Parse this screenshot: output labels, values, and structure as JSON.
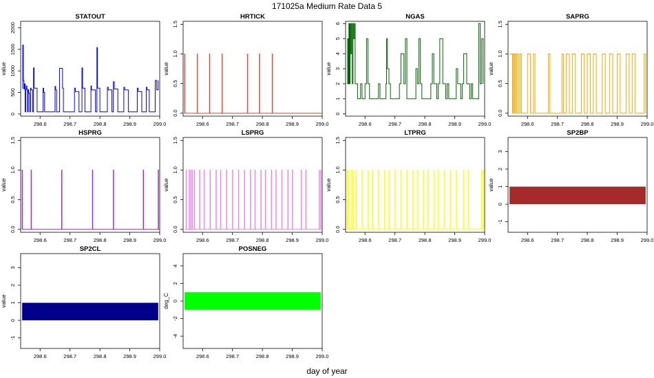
{
  "figure": {
    "title": "171025a   Medium Rate Data 5",
    "xlabel": "day of year"
  },
  "chart_data": [
    {
      "type": "line",
      "title": "STATOUT",
      "ylabel": "value",
      "color": "#0000ff",
      "xlim": [
        298.535,
        299.0
      ],
      "ylim": [
        -50,
        2150
      ],
      "xticks": [
        298.6,
        298.7,
        298.8,
        298.9,
        299.0
      ],
      "xtick_labels": [
        "298.6",
        "298.7",
        "298.8",
        "298.9",
        "299.0"
      ],
      "yticks": [
        0,
        500,
        1000,
        1500,
        2000
      ],
      "ytick_labels": [
        "0",
        "500",
        "1000",
        "1500",
        "2000"
      ],
      "x": [
        298.54,
        298.542,
        298.544,
        298.546,
        298.548,
        298.55,
        298.552,
        298.554,
        298.556,
        298.558,
        298.56,
        298.562,
        298.565,
        298.568,
        298.57,
        298.575,
        298.578,
        298.58,
        298.59,
        298.61,
        298.612,
        298.615,
        298.625,
        298.65,
        298.652,
        298.655,
        298.665,
        298.675,
        298.678,
        298.69,
        298.715,
        298.718,
        298.73,
        298.74,
        298.742,
        298.75,
        298.77,
        298.772,
        298.785,
        298.79,
        298.792,
        298.8,
        298.825,
        298.828,
        298.84,
        298.845,
        298.848,
        298.86,
        298.88,
        298.883,
        298.895,
        298.925,
        298.928,
        298.94,
        298.955,
        298.958,
        298.965,
        298.98,
        298.985,
        298.99,
        298.995
      ],
      "y": [
        600,
        1600,
        780,
        580,
        700,
        50,
        560,
        650,
        580,
        50,
        560,
        480,
        50,
        600,
        560,
        50,
        1070,
        600,
        50,
        600,
        500,
        50,
        50,
        640,
        560,
        50,
        1060,
        600,
        50,
        50,
        600,
        520,
        50,
        1070,
        600,
        50,
        650,
        560,
        50,
        1540,
        600,
        50,
        620,
        560,
        50,
        750,
        580,
        50,
        620,
        560,
        50,
        600,
        520,
        50,
        620,
        560,
        50,
        50,
        780,
        560,
        780
      ]
    },
    {
      "type": "line",
      "title": "HRTICK",
      "ylabel": "value",
      "color": "#ee4433",
      "xlim": [
        298.535,
        299.0
      ],
      "ylim": [
        -0.05,
        1.55
      ],
      "xticks": [
        298.6,
        298.7,
        298.8,
        298.9,
        299.0
      ],
      "xtick_labels": [
        "298.6",
        "298.7",
        "298.8",
        "298.9",
        "299.0"
      ],
      "yticks": [
        0,
        0.5,
        1.0,
        1.5
      ],
      "ytick_labels": [
        "0.0",
        "0.5",
        "1.0",
        "1.5"
      ],
      "pulse_x": [
        298.54,
        298.582,
        298.623,
        298.665,
        298.75,
        298.79,
        298.833
      ],
      "pulse_high": 1,
      "pulse_low": 0
    },
    {
      "type": "line",
      "title": "NGAS",
      "ylabel": "value",
      "color": "#006400",
      "xlim": [
        298.535,
        299.0
      ],
      "ylim": [
        -0.15,
        6.15
      ],
      "xticks": [
        298.6,
        298.7,
        298.8,
        298.9,
        299.0
      ],
      "xtick_labels": [
        "298.6",
        "298.7",
        "298.8",
        "298.9",
        "299.0"
      ],
      "yticks": [
        0,
        1,
        2,
        3,
        4,
        5,
        6
      ],
      "ytick_labels": [
        "0",
        "1",
        "2",
        "3",
        "4",
        "5",
        "6"
      ],
      "x": [
        298.54,
        298.542,
        298.544,
        298.546,
        298.548,
        298.55,
        298.552,
        298.555,
        298.557,
        298.56,
        298.562,
        298.565,
        298.567,
        298.57,
        298.575,
        298.58,
        298.585,
        298.59,
        298.595,
        298.6,
        298.605,
        298.61,
        298.615,
        298.62,
        298.64,
        298.645,
        298.65,
        298.655,
        298.66,
        298.67,
        298.672,
        298.675,
        298.68,
        298.685,
        298.7,
        298.715,
        298.72,
        298.73,
        298.735,
        298.74,
        298.75,
        298.77,
        298.775,
        298.78,
        298.785,
        298.79,
        298.8,
        298.82,
        298.825,
        298.83,
        298.84,
        298.845,
        298.85,
        298.86,
        298.87,
        298.875,
        298.88,
        298.9,
        298.905,
        298.91,
        298.92,
        298.925,
        298.93,
        298.94,
        298.95,
        298.955,
        298.96,
        298.97,
        298.98,
        298.985,
        298.99,
        298.995
      ],
      "y": [
        2,
        5,
        2,
        6,
        2,
        6,
        4,
        6,
        2,
        6,
        5,
        6,
        2,
        2,
        1,
        1,
        2,
        1,
        1,
        2,
        5,
        2,
        1,
        1,
        1,
        2,
        1,
        1,
        1,
        2,
        5,
        3,
        2,
        1,
        1,
        2,
        4,
        2,
        5,
        1,
        1,
        3,
        2,
        5,
        2,
        1,
        1,
        2,
        4,
        2,
        1,
        2,
        5,
        2,
        1,
        2,
        1,
        1,
        3,
        2,
        1,
        2,
        4,
        2,
        1,
        2,
        1,
        1,
        6,
        2,
        5,
        2
      ]
    },
    {
      "type": "line",
      "title": "SAPRG",
      "ylabel": "value",
      "color": "#ffa500",
      "xlim": [
        298.535,
        299.0
      ],
      "ylim": [
        -0.05,
        1.55
      ],
      "xticks": [
        298.6,
        298.7,
        298.8,
        298.9,
        299.0
      ],
      "xtick_labels": [
        "298.6",
        "298.7",
        "298.8",
        "298.9",
        "299.0"
      ],
      "yticks": [
        0,
        0.5,
        1.0,
        1.5
      ],
      "ytick_labels": [
        "0.0",
        "0.5",
        "1.0",
        "1.5"
      ],
      "step_x": [
        298.54,
        298.55,
        298.552,
        298.556,
        298.558,
        298.562,
        298.565,
        298.57,
        298.575,
        298.58,
        298.6,
        298.61,
        298.62,
        298.625,
        298.67,
        298.675,
        298.715,
        298.72,
        298.73,
        298.74,
        298.75,
        298.76,
        298.78,
        298.79,
        298.8,
        298.81,
        298.82,
        298.83,
        298.85,
        298.86,
        298.875,
        298.885,
        298.9,
        298.91,
        298.93,
        298.94,
        298.95,
        298.96,
        298.99,
        298.995
      ],
      "step_y": [
        1,
        0,
        1,
        0,
        1,
        0,
        1,
        0,
        1,
        0,
        1,
        0,
        1,
        0,
        1,
        0,
        1,
        0,
        1,
        0,
        1,
        0,
        1,
        0,
        1,
        0,
        1,
        0,
        1,
        0,
        1,
        0,
        1,
        0,
        1,
        0,
        1,
        0,
        1,
        0
      ]
    },
    {
      "type": "line",
      "title": "HSPRG",
      "ylabel": "value",
      "color": "#a020f0",
      "xlim": [
        298.535,
        299.0
      ],
      "ylim": [
        -0.05,
        1.55
      ],
      "xticks": [
        298.6,
        298.7,
        298.8,
        298.9,
        299.0
      ],
      "xtick_labels": [
        "298.6",
        "298.7",
        "298.8",
        "298.9",
        "299.0"
      ],
      "yticks": [
        0,
        0.5,
        1.0,
        1.5
      ],
      "ytick_labels": [
        "0.0",
        "0.5",
        "1.0",
        "1.5"
      ],
      "pulse_x": [
        298.54,
        298.57,
        298.672,
        298.775,
        298.845,
        298.945,
        298.995
      ],
      "pulse_high": 1,
      "pulse_low": 0
    },
    {
      "type": "line",
      "title": "LSPRG",
      "ylabel": "value",
      "color": "#ee82ee",
      "xlim": [
        298.535,
        299.0
      ],
      "ylim": [
        -0.05,
        1.55
      ],
      "xticks": [
        298.6,
        298.7,
        298.8,
        298.9,
        299.0
      ],
      "xtick_labels": [
        "298.6",
        "298.7",
        "298.8",
        "298.9",
        "299.0"
      ],
      "yticks": [
        0,
        0.5,
        1.0,
        1.5
      ],
      "ytick_labels": [
        "0.0",
        "0.5",
        "1.0",
        "1.5"
      ],
      "pulse_x": [
        298.545,
        298.555,
        298.56,
        298.565,
        298.572,
        298.59,
        298.605,
        298.625,
        298.645,
        298.66,
        298.68,
        298.7,
        298.72,
        298.74,
        298.76,
        298.775,
        298.795,
        298.81,
        298.83,
        298.845,
        298.865,
        298.885,
        298.9,
        298.93,
        298.945,
        298.99,
        298.995
      ],
      "pulse_high": 1,
      "pulse_low": 0
    },
    {
      "type": "line",
      "title": "LTPRG",
      "ylabel": "value",
      "color": "#ffff00",
      "xlim": [
        298.535,
        299.0
      ],
      "ylim": [
        -0.05,
        1.55
      ],
      "xticks": [
        298.6,
        298.7,
        298.8,
        298.9,
        299.0
      ],
      "xtick_labels": [
        "298.6",
        "298.7",
        "298.8",
        "298.9",
        "299.0"
      ],
      "yticks": [
        0,
        0.5,
        1.0,
        1.5
      ],
      "ytick_labels": [
        "0.0",
        "0.5",
        "1.0",
        "1.5"
      ],
      "pulse_x": [
        298.54,
        298.545,
        298.555,
        298.56,
        298.57,
        298.59,
        298.61,
        298.625,
        298.645,
        298.665,
        298.68,
        298.7,
        298.72,
        298.74,
        298.76,
        298.775,
        298.795,
        298.81,
        298.83,
        298.845,
        298.865,
        298.885,
        298.905,
        298.93,
        298.945,
        298.99,
        298.995
      ],
      "pulse_high": 1,
      "pulse_low": 0
    },
    {
      "type": "area",
      "title": "SP2BP",
      "ylabel": "value",
      "color": "#a52a2a",
      "xlim": [
        298.535,
        299.0
      ],
      "ylim": [
        -1.6,
        3.8
      ],
      "xticks": [
        298.6,
        298.7,
        298.8,
        298.9,
        299.0
      ],
      "xtick_labels": [
        "298.6",
        "298.7",
        "298.8",
        "298.9",
        "299.0"
      ],
      "yticks": [
        -1,
        0,
        1,
        2,
        3
      ],
      "ytick_labels": [
        "-1",
        "0",
        "1",
        "2",
        "3"
      ],
      "band": {
        "x0": 298.54,
        "x1": 298.995,
        "y0": 0,
        "y1": 1
      }
    },
    {
      "type": "area",
      "title": "SP2CL",
      "ylabel": "value",
      "color": "#00008b",
      "xlim": [
        298.535,
        299.0
      ],
      "ylim": [
        -1.6,
        3.8
      ],
      "xticks": [
        298.6,
        298.7,
        298.8,
        298.9,
        299.0
      ],
      "xtick_labels": [
        "298.6",
        "298.7",
        "298.8",
        "298.9",
        "299.0"
      ],
      "yticks": [
        -1,
        0,
        1,
        2,
        3
      ],
      "ytick_labels": [
        "-1",
        "0",
        "1",
        "2",
        "3"
      ],
      "band": {
        "x0": 298.54,
        "x1": 298.995,
        "y0": 0,
        "y1": 1
      }
    },
    {
      "type": "area",
      "title": "POSNEG",
      "ylabel": "deg_C",
      "color": "#00ff00",
      "xlim": [
        298.535,
        299.0
      ],
      "ylim": [
        -5.4,
        5.4
      ],
      "xticks": [
        298.6,
        298.7,
        298.8,
        298.9,
        299.0
      ],
      "xtick_labels": [
        "298.6",
        "298.7",
        "298.8",
        "298.9",
        "299.0"
      ],
      "yticks": [
        -4,
        -2,
        0,
        2,
        4
      ],
      "ytick_labels": [
        "-4",
        "-2",
        "0",
        "2",
        "4"
      ],
      "band": {
        "x0": 298.54,
        "x1": 298.995,
        "y0": -1,
        "y1": 1
      }
    }
  ]
}
